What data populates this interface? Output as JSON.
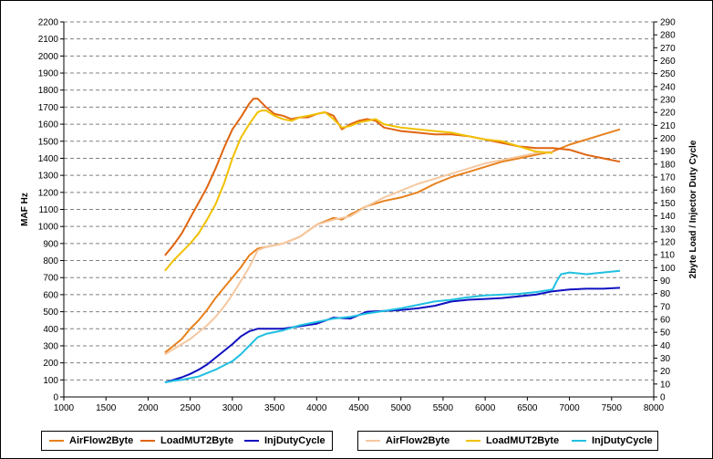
{
  "chart_data": {
    "type": "line",
    "title": "",
    "xlabel": "",
    "ylabel": "MAF Hz",
    "y2label": "2byte Load / Injector Duty Cycle",
    "xlim": [
      1000,
      8000
    ],
    "ylim": [
      0,
      2200
    ],
    "y2lim": [
      0,
      290
    ],
    "xticks": [
      1000,
      1500,
      2000,
      2500,
      3000,
      3500,
      4000,
      4500,
      5000,
      5500,
      6000,
      6500,
      7000,
      7500,
      8000
    ],
    "yticks": [
      0,
      100,
      200,
      300,
      400,
      500,
      600,
      700,
      800,
      900,
      1000,
      1100,
      1200,
      1300,
      1400,
      1500,
      1600,
      1700,
      1800,
      1900,
      2000,
      2100,
      2200
    ],
    "y2ticks": [
      0,
      10,
      20,
      30,
      40,
      50,
      60,
      70,
      80,
      90,
      100,
      110,
      120,
      130,
      140,
      150,
      160,
      170,
      180,
      190,
      200,
      210,
      220,
      230,
      240,
      250,
      260,
      270,
      280,
      290
    ],
    "grid": true,
    "legend_position": "bottom",
    "legends": [
      {
        "items": [
          "AirFlow2Byte",
          "LoadMUT2Byte",
          "InjDutyCycle"
        ]
      },
      {
        "items": [
          "AirFlow2Byte",
          "LoadMUT2Byte",
          "InjDutyCycle"
        ]
      }
    ],
    "series": [
      {
        "name": "AirFlow2Byte",
        "legend": 0,
        "axis": "left",
        "color": "#E8801C",
        "x": [
          2200,
          2300,
          2400,
          2500,
          2600,
          2700,
          2800,
          2900,
          3000,
          3100,
          3200,
          3300,
          3400,
          3600,
          3800,
          4000,
          4100,
          4200,
          4300,
          4400,
          4600,
          4800,
          5000,
          5200,
          5400,
          5600,
          5800,
          6000,
          6200,
          6400,
          6600,
          6800,
          7000,
          7200,
          7400,
          7600
        ],
        "y": [
          260,
          300,
          340,
          400,
          450,
          510,
          580,
          640,
          700,
          760,
          830,
          870,
          880,
          900,
          940,
          1010,
          1030,
          1050,
          1040,
          1070,
          1120,
          1150,
          1170,
          1200,
          1250,
          1290,
          1320,
          1350,
          1380,
          1400,
          1420,
          1440,
          1480,
          1510,
          1540,
          1570
        ]
      },
      {
        "name": "LoadMUT2Byte",
        "legend": 0,
        "axis": "left",
        "color": "#E06410",
        "x": [
          2200,
          2300,
          2400,
          2500,
          2600,
          2700,
          2800,
          2900,
          3000,
          3100,
          3200,
          3250,
          3300,
          3400,
          3500,
          3600,
          3700,
          3800,
          3900,
          4000,
          4100,
          4200,
          4300,
          4400,
          4500,
          4600,
          4700,
          4800,
          4900,
          5000,
          5200,
          5400,
          5600,
          5800,
          6000,
          6200,
          6400,
          6600,
          6800,
          7000,
          7200,
          7400,
          7600
        ],
        "y": [
          830,
          890,
          960,
          1050,
          1140,
          1230,
          1340,
          1460,
          1570,
          1640,
          1720,
          1750,
          1750,
          1700,
          1660,
          1650,
          1630,
          1640,
          1640,
          1660,
          1670,
          1650,
          1570,
          1600,
          1620,
          1630,
          1620,
          1580,
          1570,
          1560,
          1550,
          1540,
          1540,
          1530,
          1510,
          1490,
          1470,
          1460,
          1460,
          1450,
          1420,
          1400,
          1380
        ]
      },
      {
        "name": "InjDutyCycle",
        "legend": 0,
        "axis": "left",
        "color": "#1010C0",
        "x": [
          2200,
          2300,
          2400,
          2500,
          2600,
          2700,
          2800,
          2900,
          3000,
          3100,
          3200,
          3300,
          3400,
          3500,
          3600,
          3800,
          4000,
          4200,
          4400,
          4600,
          4800,
          5000,
          5200,
          5400,
          5600,
          5800,
          6000,
          6200,
          6400,
          6600,
          6800,
          7000,
          7200,
          7400,
          7600
        ],
        "y": [
          85,
          100,
          115,
          135,
          160,
          190,
          230,
          270,
          310,
          355,
          385,
          400,
          400,
          400,
          400,
          415,
          430,
          465,
          460,
          500,
          505,
          510,
          520,
          535,
          560,
          570,
          575,
          580,
          590,
          600,
          620,
          630,
          635,
          635,
          640
        ]
      },
      {
        "name": "AirFlow2Byte",
        "legend": 1,
        "axis": "left",
        "color": "#F5C8A0",
        "x": [
          2200,
          2300,
          2400,
          2500,
          2600,
          2700,
          2800,
          2900,
          3000,
          3100,
          3200,
          3300,
          3400,
          3600,
          3800,
          4000,
          4200,
          4400,
          4600,
          4800,
          5000,
          5200,
          5400,
          5600,
          5800,
          6000,
          6200,
          6400,
          6600,
          6800
        ],
        "y": [
          250,
          280,
          310,
          340,
          380,
          420,
          470,
          530,
          600,
          680,
          760,
          860,
          880,
          900,
          940,
          1010,
          1040,
          1060,
          1120,
          1170,
          1210,
          1250,
          1280,
          1310,
          1340,
          1370,
          1390,
          1410,
          1430,
          1440
        ]
      },
      {
        "name": "LoadMUT2Byte",
        "legend": 1,
        "axis": "left",
        "color": "#F0C000",
        "x": [
          2200,
          2300,
          2400,
          2500,
          2600,
          2700,
          2800,
          2900,
          3000,
          3100,
          3200,
          3300,
          3350,
          3400,
          3500,
          3600,
          3700,
          3800,
          3900,
          4000,
          4100,
          4200,
          4300,
          4400,
          4500,
          4600,
          4700,
          4800,
          4900,
          5000,
          5200,
          5400,
          5600,
          5800,
          6000,
          6200,
          6400,
          6600,
          6800
        ],
        "y": [
          740,
          800,
          850,
          900,
          960,
          1040,
          1130,
          1250,
          1400,
          1520,
          1600,
          1670,
          1680,
          1680,
          1650,
          1630,
          1620,
          1640,
          1650,
          1660,
          1670,
          1630,
          1580,
          1590,
          1610,
          1620,
          1630,
          1600,
          1590,
          1580,
          1570,
          1560,
          1550,
          1530,
          1510,
          1500,
          1470,
          1440,
          1430
        ]
      },
      {
        "name": "InjDutyCycle",
        "legend": 1,
        "axis": "left",
        "color": "#20C0E0",
        "x": [
          2200,
          2300,
          2400,
          2500,
          2600,
          2700,
          2800,
          2900,
          3000,
          3100,
          3200,
          3300,
          3400,
          3600,
          3800,
          4000,
          4200,
          4400,
          4600,
          4800,
          5000,
          5200,
          5400,
          5600,
          5800,
          6000,
          6200,
          6400,
          6600,
          6800,
          6850,
          6900,
          7000,
          7200,
          7400,
          7600
        ],
        "y": [
          85,
          95,
          100,
          110,
          120,
          140,
          160,
          185,
          210,
          250,
          300,
          350,
          370,
          390,
          420,
          440,
          460,
          470,
          490,
          505,
          520,
          540,
          560,
          570,
          585,
          595,
          600,
          605,
          615,
          630,
          680,
          720,
          730,
          720,
          730,
          740
        ]
      }
    ]
  }
}
